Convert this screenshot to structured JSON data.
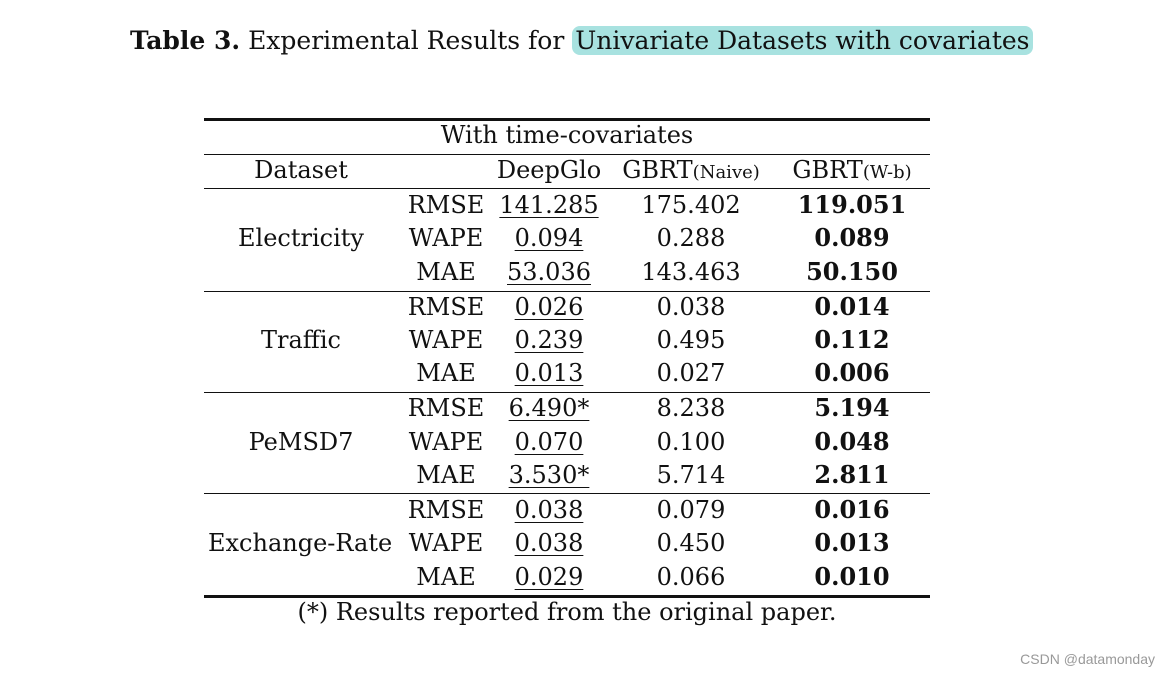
{
  "caption": {
    "label": "Table 3.",
    "text": "Experimental Results for",
    "highlight": "Univariate Datasets with covariates"
  },
  "table": {
    "group_header": "With time-covariates",
    "headers": {
      "dataset": "Dataset",
      "deepglo": "DeepGlo",
      "gbrt_naive_main": "GBRT",
      "gbrt_naive_sub": "(Naive)",
      "gbrt_wb_main": "GBRT",
      "gbrt_wb_sub": "(W-b)"
    },
    "groups": [
      {
        "dataset": "Electricity",
        "rows": [
          {
            "metric": "RMSE",
            "deepglo": "141.285",
            "gbrt_naive": "175.402",
            "gbrt_wb": "119.051"
          },
          {
            "metric": "WAPE",
            "deepglo": "0.094",
            "gbrt_naive": "0.288",
            "gbrt_wb": "0.089"
          },
          {
            "metric": "MAE",
            "deepglo": "53.036",
            "gbrt_naive": "143.463",
            "gbrt_wb": "50.150"
          }
        ]
      },
      {
        "dataset": "Traffic",
        "rows": [
          {
            "metric": "RMSE",
            "deepglo": "0.026",
            "gbrt_naive": "0.038",
            "gbrt_wb": "0.014"
          },
          {
            "metric": "WAPE",
            "deepglo": "0.239",
            "gbrt_naive": "0.495",
            "gbrt_wb": "0.112"
          },
          {
            "metric": "MAE",
            "deepglo": "0.013",
            "gbrt_naive": "0.027",
            "gbrt_wb": "0.006"
          }
        ]
      },
      {
        "dataset": "PeMSD7",
        "rows": [
          {
            "metric": "RMSE",
            "deepglo": "6.490*",
            "gbrt_naive": "8.238",
            "gbrt_wb": "5.194"
          },
          {
            "metric": "WAPE",
            "deepglo": "0.070",
            "gbrt_naive": "0.100",
            "gbrt_wb": "0.048"
          },
          {
            "metric": "MAE",
            "deepglo": "3.530*",
            "gbrt_naive": "5.714",
            "gbrt_wb": "2.811"
          }
        ]
      },
      {
        "dataset": "Exchange-Rate",
        "rows": [
          {
            "metric": "RMSE",
            "deepglo": "0.038",
            "gbrt_naive": "0.079",
            "gbrt_wb": "0.016"
          },
          {
            "metric": "WAPE",
            "deepglo": "0.038",
            "gbrt_naive": "0.450",
            "gbrt_wb": "0.013"
          },
          {
            "metric": "MAE",
            "deepglo": "0.029",
            "gbrt_naive": "0.066",
            "gbrt_wb": "0.010"
          }
        ]
      }
    ],
    "footnote": "(*) Results reported from the original paper."
  },
  "watermark": "CSDN @datamonday",
  "colors": {
    "highlight": "#a8e2e0",
    "text": "#111111",
    "watermark": "#999999"
  }
}
